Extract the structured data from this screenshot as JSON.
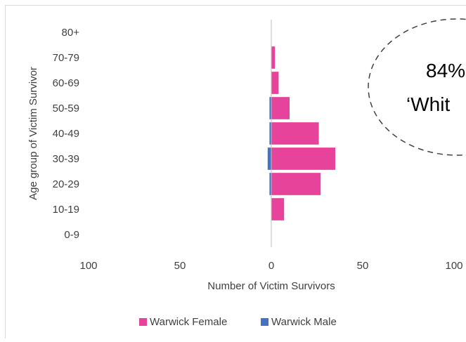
{
  "chart_data": {
    "type": "bar",
    "orientation": "horizontal-population-pyramid",
    "categories": [
      "0-9",
      "10-19",
      "20-29",
      "30-39",
      "40-49",
      "50-59",
      "60-69",
      "70-79",
      "80+"
    ],
    "series": [
      {
        "name": "Warwick Female",
        "color": "#E8439A",
        "side": "right",
        "values": [
          0,
          7,
          27,
          35,
          26,
          10,
          4,
          2,
          0
        ]
      },
      {
        "name": "Warwick Male",
        "color": "#4472C4",
        "side": "left",
        "values": [
          0,
          0,
          1,
          2,
          1,
          1,
          0,
          0,
          0
        ]
      }
    ],
    "xlabel": "Number of Victim Survivors",
    "ylabel": "Age group of Victim Survivor",
    "xlim": [
      -100,
      100
    ],
    "xticks": [
      "100",
      "50",
      "0",
      "50",
      "100"
    ],
    "grid": false,
    "legend_position": "bottom",
    "callout_text": [
      "84%",
      "‘Whit"
    ]
  }
}
